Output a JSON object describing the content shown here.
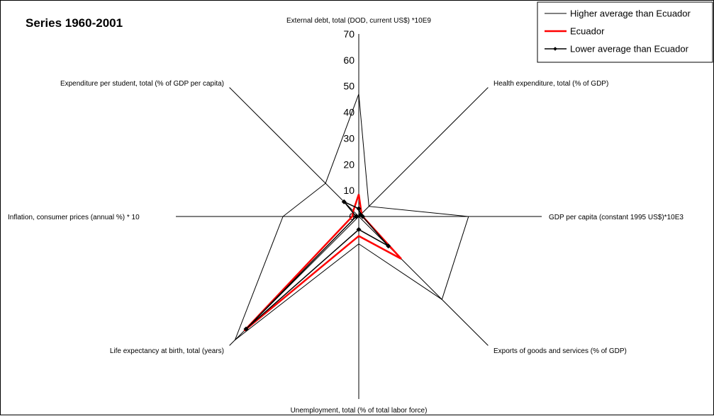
{
  "chart_data": {
    "type": "radar",
    "title": "Series 1960-2001",
    "axes": [
      "External debt, total (DOD, current US$) *10E9",
      "Health expenditure, total (% of GDP)",
      "GDP per capita (constant 1995 US$)*10E3",
      "Exports of goods and services (% of GDP)",
      "Unemployment, total (% of total labor force)",
      "Life expectancy at birth, total (years)",
      "Inflation, consumer prices (annual %) * 10",
      "Expenditure per student, total (% of GDP per capita)"
    ],
    "rlim": [
      0,
      70
    ],
    "ticks": [
      "0",
      "10",
      "20",
      "30",
      "40",
      "50",
      "60",
      "70"
    ],
    "series": [
      {
        "name": "Higher average than Ecuador",
        "color": "#000000",
        "marker": "none",
        "values": [
          47,
          5.5,
          42,
          45,
          10.5,
          67,
          29,
          18
        ]
      },
      {
        "name": "Ecuador",
        "color": "#ff0000",
        "marker": "none",
        "values": [
          8.5,
          1.5,
          1.5,
          23,
          7.5,
          62,
          2.5,
          3
        ]
      },
      {
        "name": "Lower average than Ecuador",
        "color": "#000000",
        "marker": "diamond",
        "values": [
          3,
          1,
          1.5,
          16,
          5,
          61,
          1,
          8
        ]
      }
    ],
    "legend_position": "top-right"
  }
}
